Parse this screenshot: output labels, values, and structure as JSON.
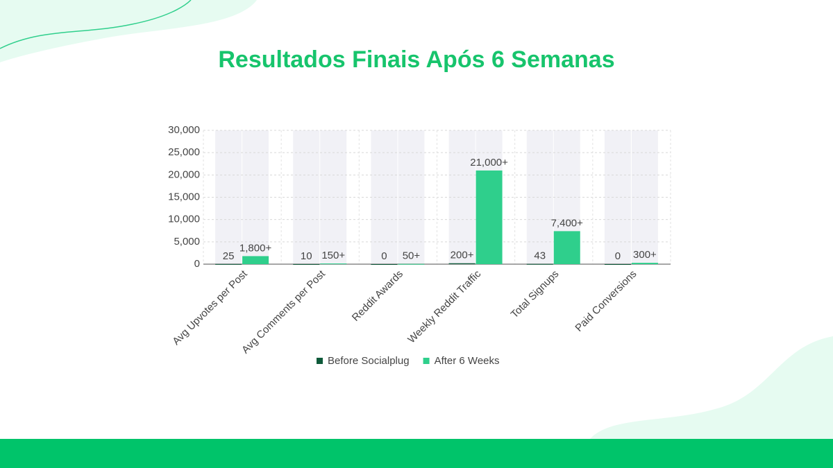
{
  "chart_data": {
    "type": "bar",
    "title": "Resultados Finais Após 6 Semanas",
    "categories": [
      "Avg Upvotes per Post",
      "Avg Comments per Post",
      "Reddit Awards",
      "Weekly Reddit Traffic",
      "Total Signups",
      "Paid Conversions"
    ],
    "series": [
      {
        "name": "Before Socialplug",
        "color": "#0e5a3a",
        "values": [
          25,
          10,
          0,
          200,
          43,
          0
        ],
        "value_labels": [
          "25",
          "10",
          "0",
          "200+",
          "43",
          "0"
        ]
      },
      {
        "name": "After 6 Weeks",
        "color": "#2fcf8c",
        "values": [
          1800,
          150,
          50,
          21000,
          7400,
          300
        ],
        "value_labels": [
          "1,800+",
          "150+",
          "50+",
          "21,000+",
          "7,400+",
          "300+"
        ]
      }
    ],
    "ylim": [
      0,
      30000
    ],
    "yticks": [
      0,
      {
        "value": 5000,
        "label": "5,000"
      },
      {
        "value": 10000,
        "label": "10,000"
      },
      {
        "value": 15000,
        "label": "15,000"
      },
      {
        "value": 20000,
        "label": "20,000"
      },
      {
        "value": 25000,
        "label": "25,000"
      },
      {
        "value": 30000,
        "label": "30,000"
      }
    ],
    "grid": true
  }
}
